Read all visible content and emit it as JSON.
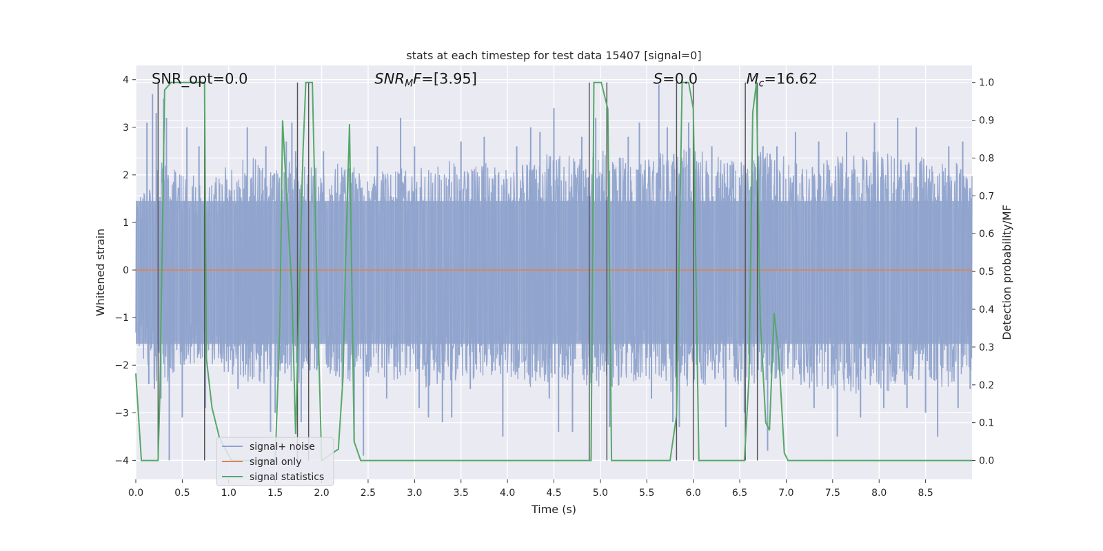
{
  "chart_data": {
    "type": "line",
    "title": "stats at each timestep for test data 15407 [signal=0]",
    "xlabel": "Time (s)",
    "ylabel": "Whitened strain",
    "ylabel_right": "Detection probability/MF",
    "xlim": [
      0,
      9.0
    ],
    "ylim": [
      -4.4,
      4.3
    ],
    "ylim_right": [
      -0.05,
      1.045
    ],
    "x_ticks": [
      0.0,
      0.5,
      1.0,
      1.5,
      2.0,
      2.5,
      3.0,
      3.5,
      4.0,
      4.5,
      5.0,
      5.5,
      6.0,
      6.5,
      7.0,
      7.5,
      8.0,
      8.5
    ],
    "x_tick_labels": [
      "0.0",
      "0.5",
      "1.0",
      "1.5",
      "2.0",
      "2.5",
      "3.0",
      "3.5",
      "4.0",
      "4.5",
      "5.0",
      "5.5",
      "6.0",
      "6.5",
      "7.0",
      "7.5",
      "8.0",
      "8.5"
    ],
    "y_ticks": [
      -4,
      -3,
      -2,
      -1,
      0,
      1,
      2,
      3,
      4
    ],
    "y_tick_labels": [
      "−4",
      "−3",
      "−2",
      "−1",
      "0",
      "1",
      "2",
      "3",
      "4"
    ],
    "y2_ticks": [
      0.0,
      0.1,
      0.2,
      0.3,
      0.4,
      0.5,
      0.6,
      0.7,
      0.8,
      0.9,
      1.0
    ],
    "y2_tick_labels": [
      "0.0",
      "0.1",
      "0.2",
      "0.3",
      "0.4",
      "0.5",
      "0.6",
      "0.7",
      "0.8",
      "0.9",
      "1.0"
    ],
    "annotations": [
      {
        "x": 0.2,
        "y": 4.0,
        "text": "SNR_opt=0.0",
        "parts": [
          {
            "t": "SNR_opt=0.0",
            "style": "normal",
            "sub": false
          }
        ]
      },
      {
        "x": 2.6,
        "y": 4.0,
        "text": "SNR_MF=[3.95]",
        "parts": [
          {
            "t": "SNR",
            "style": "italic",
            "sub": false
          },
          {
            "t": "M",
            "style": "italic",
            "sub": true
          },
          {
            "t": "F",
            "style": "italic",
            "sub": false
          },
          {
            "t": "=[3.95]",
            "style": "normal",
            "sub": false
          }
        ]
      },
      {
        "x": 5.6,
        "y": 4.0,
        "text": "S=0.0",
        "parts": [
          {
            "t": "S",
            "style": "italic",
            "sub": false
          },
          {
            "t": "=0.0",
            "style": "normal",
            "sub": false
          }
        ]
      },
      {
        "x": 6.6,
        "y": 4.0,
        "text": "M_c=16.62",
        "parts": [
          {
            "t": "M",
            "style": "italic",
            "sub": false
          },
          {
            "t": "c",
            "style": "italic",
            "sub": true
          },
          {
            "t": "=16.62",
            "style": "normal",
            "sub": false
          }
        ]
      }
    ],
    "legend": {
      "placement": "lower-left",
      "entries": [
        {
          "label": "signal+ noise",
          "color": "#8fa3cc"
        },
        {
          "label": "signal only",
          "color": "#dd8452"
        },
        {
          "label": "signal statistics",
          "color": "#55a868"
        }
      ]
    },
    "series": [
      {
        "name": "signal+ noise",
        "color": "#8fa3cc",
        "kind": "noise",
        "envelope_upper": [
          [
            0.0,
            1.4
          ],
          [
            0.25,
            2.3
          ],
          [
            0.5,
            2.1
          ],
          [
            0.75,
            1.9
          ],
          [
            1.0,
            2.2
          ],
          [
            1.25,
            2.4
          ],
          [
            1.5,
            2.1
          ],
          [
            1.75,
            2.4
          ],
          [
            2.0,
            2.1
          ],
          [
            2.25,
            2.3
          ],
          [
            2.5,
            2.0
          ],
          [
            2.75,
            2.2
          ],
          [
            3.0,
            2.1
          ],
          [
            3.25,
            2.4
          ],
          [
            3.5,
            2.2
          ],
          [
            3.75,
            2.3
          ],
          [
            4.0,
            2.1
          ],
          [
            4.25,
            2.3
          ],
          [
            4.5,
            2.5
          ],
          [
            4.75,
            2.4
          ],
          [
            5.0,
            2.6
          ],
          [
            5.25,
            2.4
          ],
          [
            5.5,
            2.3
          ],
          [
            5.75,
            2.6
          ],
          [
            6.0,
            2.6
          ],
          [
            6.25,
            2.4
          ],
          [
            6.5,
            2.3
          ],
          [
            6.75,
            2.5
          ],
          [
            7.0,
            2.4
          ],
          [
            7.25,
            2.2
          ],
          [
            7.5,
            2.4
          ],
          [
            7.75,
            2.5
          ],
          [
            8.0,
            2.5
          ],
          [
            8.25,
            2.4
          ],
          [
            8.5,
            2.4
          ],
          [
            8.75,
            2.3
          ],
          [
            9.0,
            2.2
          ]
        ],
        "envelope_lower": [
          [
            0.0,
            -1.6
          ],
          [
            0.25,
            -2.5
          ],
          [
            0.5,
            -2.1
          ],
          [
            0.75,
            -1.9
          ],
          [
            1.0,
            -2.2
          ],
          [
            1.25,
            -2.5
          ],
          [
            1.5,
            -2.3
          ],
          [
            1.75,
            -2.5
          ],
          [
            2.0,
            -2.1
          ],
          [
            2.25,
            -2.5
          ],
          [
            2.5,
            -2.3
          ],
          [
            2.75,
            -2.3
          ],
          [
            3.0,
            -2.5
          ],
          [
            3.25,
            -2.4
          ],
          [
            3.5,
            -2.3
          ],
          [
            3.75,
            -2.3
          ],
          [
            4.0,
            -2.2
          ],
          [
            4.25,
            -2.5
          ],
          [
            4.5,
            -2.5
          ],
          [
            4.75,
            -2.4
          ],
          [
            5.0,
            -2.6
          ],
          [
            5.25,
            -2.4
          ],
          [
            5.5,
            -2.3
          ],
          [
            5.75,
            -2.6
          ],
          [
            6.0,
            -2.4
          ],
          [
            6.25,
            -2.5
          ],
          [
            6.5,
            -2.4
          ],
          [
            6.75,
            -2.4
          ],
          [
            7.0,
            -2.2
          ],
          [
            7.25,
            -2.6
          ],
          [
            7.5,
            -2.5
          ],
          [
            7.75,
            -2.6
          ],
          [
            8.0,
            -2.6
          ],
          [
            8.25,
            -2.5
          ],
          [
            8.5,
            -2.3
          ],
          [
            8.75,
            -2.6
          ],
          [
            9.0,
            -2.1
          ]
        ],
        "spikes": [
          [
            0.12,
            3.1
          ],
          [
            0.14,
            -2.4
          ],
          [
            0.18,
            3.7
          ],
          [
            0.2,
            -2.5
          ],
          [
            0.22,
            3.3
          ],
          [
            0.27,
            -2.7
          ],
          [
            0.3,
            3.6
          ],
          [
            0.33,
            3.2
          ],
          [
            0.36,
            -4.0
          ],
          [
            0.5,
            -3.1
          ],
          [
            0.55,
            3.0
          ],
          [
            0.68,
            2.6
          ],
          [
            0.75,
            -2.9
          ],
          [
            1.1,
            -2.5
          ],
          [
            1.2,
            3.0
          ],
          [
            1.4,
            2.6
          ],
          [
            1.45,
            -3.4
          ],
          [
            1.5,
            -3.0
          ],
          [
            1.62,
            2.7
          ],
          [
            1.68,
            3.1
          ],
          [
            1.72,
            2.5
          ],
          [
            1.78,
            -3.2
          ],
          [
            2.02,
            2.5
          ],
          [
            2.35,
            -3.6
          ],
          [
            2.45,
            -3.9
          ],
          [
            2.6,
            2.6
          ],
          [
            2.7,
            -2.7
          ],
          [
            2.85,
            3.2
          ],
          [
            3.0,
            2.6
          ],
          [
            3.05,
            -2.9
          ],
          [
            3.15,
            -3.1
          ],
          [
            3.3,
            -3.2
          ],
          [
            3.4,
            -3.1
          ],
          [
            3.5,
            2.7
          ],
          [
            3.6,
            -2.5
          ],
          [
            3.75,
            2.8
          ],
          [
            3.95,
            -3.5
          ],
          [
            4.1,
            2.6
          ],
          [
            4.25,
            3.0
          ],
          [
            4.35,
            2.9
          ],
          [
            4.45,
            -2.7
          ],
          [
            4.5,
            3.4
          ],
          [
            4.55,
            -3.4
          ],
          [
            4.7,
            -3.4
          ],
          [
            4.8,
            2.8
          ],
          [
            4.95,
            3.2
          ],
          [
            5.1,
            -3.3
          ],
          [
            5.3,
            2.8
          ],
          [
            5.42,
            3.1
          ],
          [
            5.55,
            -2.7
          ],
          [
            5.63,
            3.9
          ],
          [
            5.72,
            3.0
          ],
          [
            5.78,
            -3.2
          ],
          [
            5.85,
            -3.3
          ],
          [
            5.95,
            3.1
          ],
          [
            6.2,
            2.6
          ],
          [
            6.35,
            -3.3
          ],
          [
            6.55,
            -3.0
          ],
          [
            6.75,
            2.6
          ],
          [
            6.8,
            -3.8
          ],
          [
            6.9,
            2.6
          ],
          [
            7.1,
            2.9
          ],
          [
            7.3,
            -2.9
          ],
          [
            7.35,
            2.7
          ],
          [
            7.45,
            -2.5
          ],
          [
            7.55,
            -3.5
          ],
          [
            7.65,
            2.9
          ],
          [
            7.8,
            -3.1
          ],
          [
            7.95,
            3.1
          ],
          [
            8.05,
            -2.9
          ],
          [
            8.2,
            3.2
          ],
          [
            8.3,
            -2.9
          ],
          [
            8.4,
            3.0
          ],
          [
            8.5,
            -3.0
          ],
          [
            8.63,
            -3.5
          ],
          [
            8.75,
            2.6
          ],
          [
            8.85,
            -2.9
          ],
          [
            8.9,
            2.7
          ],
          [
            8.98,
            -2.5
          ]
        ]
      },
      {
        "name": "signal only",
        "color": "#dd8452",
        "kind": "line",
        "points": [
          [
            0.0,
            0.0
          ],
          [
            9.0,
            0.0
          ]
        ]
      },
      {
        "name": "signal statistics",
        "color": "#55a868",
        "kind": "line",
        "axis": "right",
        "points": [
          [
            0.0,
            0.23
          ],
          [
            0.06,
            0.0
          ],
          [
            0.24,
            0.0
          ],
          [
            0.26,
            0.18
          ],
          [
            0.31,
            0.98
          ],
          [
            0.38,
            1.0
          ],
          [
            0.74,
            1.0
          ],
          [
            0.76,
            0.27
          ],
          [
            0.82,
            0.14
          ],
          [
            0.9,
            0.06
          ],
          [
            1.03,
            0.0
          ],
          [
            1.5,
            0.0
          ],
          [
            1.55,
            0.35
          ],
          [
            1.58,
            0.9
          ],
          [
            1.62,
            0.72
          ],
          [
            1.68,
            0.45
          ],
          [
            1.72,
            0.07
          ],
          [
            1.8,
            0.82
          ],
          [
            1.83,
            1.0
          ],
          [
            1.9,
            1.0
          ],
          [
            1.95,
            0.46
          ],
          [
            2.0,
            0.0
          ],
          [
            2.18,
            0.03
          ],
          [
            2.23,
            0.22
          ],
          [
            2.26,
            0.55
          ],
          [
            2.3,
            0.89
          ],
          [
            2.35,
            0.05
          ],
          [
            2.42,
            0.0
          ],
          [
            4.9,
            0.0
          ],
          [
            4.93,
            1.0
          ],
          [
            5.01,
            1.0
          ],
          [
            5.08,
            0.93
          ],
          [
            5.12,
            0.0
          ],
          [
            5.75,
            0.0
          ],
          [
            5.82,
            0.12
          ],
          [
            5.88,
            1.0
          ],
          [
            5.95,
            1.0
          ],
          [
            6.0,
            0.93
          ],
          [
            6.06,
            0.0
          ],
          [
            6.55,
            0.0
          ],
          [
            6.6,
            0.22
          ],
          [
            6.64,
            0.92
          ],
          [
            6.68,
            1.0
          ],
          [
            6.72,
            0.38
          ],
          [
            6.78,
            0.1
          ],
          [
            6.82,
            0.08
          ],
          [
            6.87,
            0.39
          ],
          [
            6.92,
            0.28
          ],
          [
            6.98,
            0.02
          ],
          [
            7.02,
            0.0
          ],
          [
            9.0,
            0.0
          ]
        ],
        "vertical_lines_x": [
          0.24,
          0.74,
          1.74,
          1.86,
          4.88,
          5.07,
          5.82,
          6.0,
          6.56,
          6.69
        ]
      }
    ]
  }
}
